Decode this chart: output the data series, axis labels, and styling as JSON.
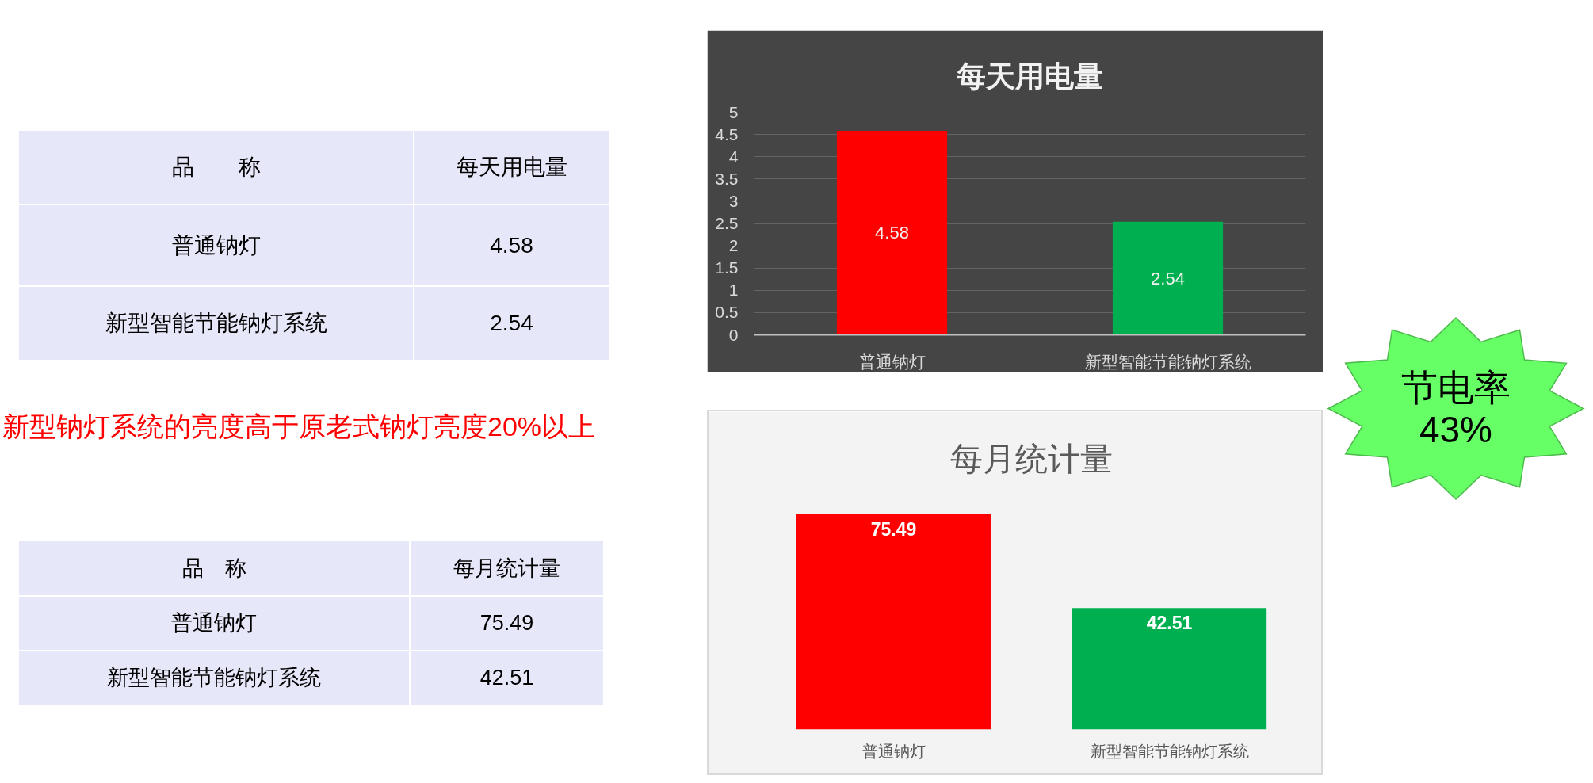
{
  "chart_data": [
    {
      "type": "other",
      "annotations": [
        "品　　称",
        "每天用电量"
      ],
      "categories": [
        "普通钠灯",
        "新型智能节能钠灯系统"
      ],
      "values": [
        4.58,
        2.54
      ],
      "data_labels": true
    },
    {
      "type": "other",
      "annotations": [
        "新型钠灯系统的亮度高于原老式钠灯亮度20%以上"
      ]
    },
    {
      "type": "other",
      "annotations": [
        "品　称",
        "每月统计量"
      ],
      "categories": [
        "普通钠灯",
        "新型智能节能钠灯系统"
      ],
      "values": [
        75.49,
        42.51
      ],
      "data_labels": true
    },
    {
      "type": "bar",
      "title": "每天用电量",
      "categories": [
        "普通钠灯",
        "新型智能节能钠灯系统"
      ],
      "values": [
        4.58,
        2.54
      ],
      "colors": [
        "#ff0000",
        "#00b050"
      ],
      "ylim": [
        0,
        5
      ],
      "yticks": [
        0,
        0.5,
        1,
        1.5,
        2,
        2.5,
        3,
        3.5,
        4,
        4.5,
        5
      ],
      "grid": "y",
      "data_labels": true
    },
    {
      "type": "bar",
      "title": "每月统计量",
      "categories": [
        "普通钠灯",
        "新型智能节能钠灯系统"
      ],
      "values": [
        75.49,
        42.51
      ],
      "colors": [
        "#ff0000",
        "#00b050"
      ],
      "data_labels": true
    },
    {
      "type": "other",
      "annotations": [
        "节电率",
        "43%"
      ]
    }
  ]
}
